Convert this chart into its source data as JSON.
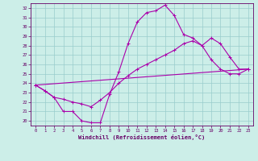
{
  "xlabel": "Windchill (Refroidissement éolien,°C)",
  "bg_color": "#cceee8",
  "line_color": "#aa00aa",
  "grid_color": "#99cccc",
  "xlim": [
    -0.5,
    23.5
  ],
  "ylim": [
    19.5,
    32.5
  ],
  "xticks": [
    0,
    1,
    2,
    3,
    4,
    5,
    6,
    7,
    8,
    9,
    10,
    11,
    12,
    13,
    14,
    15,
    16,
    17,
    18,
    19,
    20,
    21,
    22,
    23
  ],
  "yticks": [
    20,
    21,
    22,
    23,
    24,
    25,
    26,
    27,
    28,
    29,
    30,
    31,
    32
  ],
  "line1_x": [
    0,
    1,
    2,
    3,
    4,
    5,
    6,
    7,
    8,
    9,
    10,
    11,
    12,
    13,
    14,
    15,
    16,
    17,
    18,
    19,
    20,
    21,
    22,
    23
  ],
  "line1_y": [
    23.8,
    23.2,
    22.5,
    21.0,
    21.0,
    20.0,
    19.8,
    19.8,
    22.8,
    25.2,
    28.2,
    30.5,
    31.5,
    31.7,
    32.3,
    31.2,
    29.2,
    28.8,
    28.0,
    26.5,
    25.5,
    25.0,
    25.0,
    25.5
  ],
  "line2_x": [
    0,
    23
  ],
  "line2_y": [
    23.8,
    25.5
  ],
  "line3_x": [
    0,
    1,
    2,
    3,
    4,
    5,
    6,
    7,
    8,
    9,
    10,
    11,
    12,
    13,
    14,
    15,
    16,
    17,
    18,
    19,
    20,
    21,
    22,
    23
  ],
  "line3_y": [
    23.8,
    23.2,
    22.5,
    22.3,
    22.0,
    21.8,
    21.5,
    22.2,
    23.0,
    24.0,
    24.8,
    25.5,
    26.0,
    26.5,
    27.0,
    27.5,
    28.2,
    28.5,
    28.0,
    28.8,
    28.2,
    26.8,
    25.5,
    25.5
  ]
}
